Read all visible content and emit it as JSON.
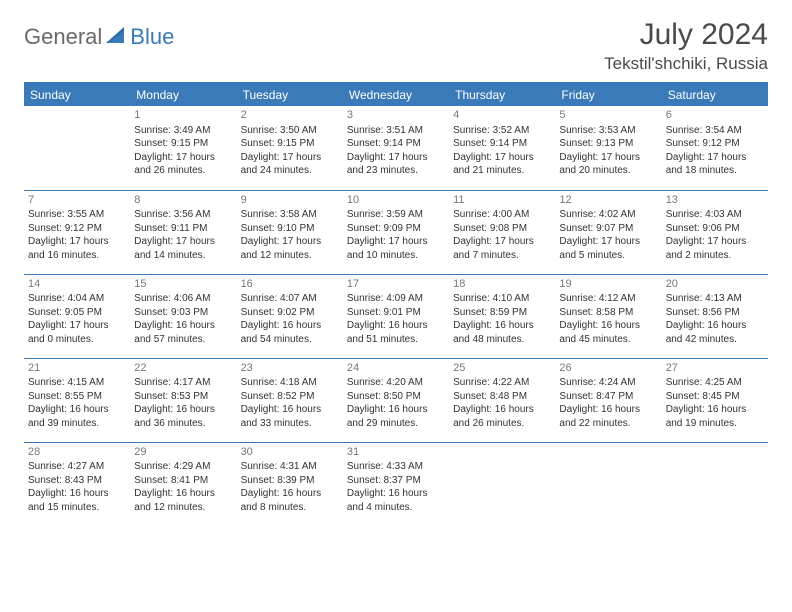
{
  "logo": {
    "general": "General",
    "blue": "Blue"
  },
  "title": {
    "month": "July 2024",
    "location": "Tekstil'shchiki, Russia"
  },
  "colors": {
    "accent": "#3a7ab8",
    "header_text": "#ffffff",
    "body_text": "#333333",
    "muted": "#777777"
  },
  "day_headers": [
    "Sunday",
    "Monday",
    "Tuesday",
    "Wednesday",
    "Thursday",
    "Friday",
    "Saturday"
  ],
  "weeks": [
    [
      {
        "day": "",
        "sunrise": "",
        "sunset": "",
        "dayl1": "",
        "dayl2": ""
      },
      {
        "day": "1",
        "sunrise": "Sunrise: 3:49 AM",
        "sunset": "Sunset: 9:15 PM",
        "dayl1": "Daylight: 17 hours",
        "dayl2": "and 26 minutes."
      },
      {
        "day": "2",
        "sunrise": "Sunrise: 3:50 AM",
        "sunset": "Sunset: 9:15 PM",
        "dayl1": "Daylight: 17 hours",
        "dayl2": "and 24 minutes."
      },
      {
        "day": "3",
        "sunrise": "Sunrise: 3:51 AM",
        "sunset": "Sunset: 9:14 PM",
        "dayl1": "Daylight: 17 hours",
        "dayl2": "and 23 minutes."
      },
      {
        "day": "4",
        "sunrise": "Sunrise: 3:52 AM",
        "sunset": "Sunset: 9:14 PM",
        "dayl1": "Daylight: 17 hours",
        "dayl2": "and 21 minutes."
      },
      {
        "day": "5",
        "sunrise": "Sunrise: 3:53 AM",
        "sunset": "Sunset: 9:13 PM",
        "dayl1": "Daylight: 17 hours",
        "dayl2": "and 20 minutes."
      },
      {
        "day": "6",
        "sunrise": "Sunrise: 3:54 AM",
        "sunset": "Sunset: 9:12 PM",
        "dayl1": "Daylight: 17 hours",
        "dayl2": "and 18 minutes."
      }
    ],
    [
      {
        "day": "7",
        "sunrise": "Sunrise: 3:55 AM",
        "sunset": "Sunset: 9:12 PM",
        "dayl1": "Daylight: 17 hours",
        "dayl2": "and 16 minutes."
      },
      {
        "day": "8",
        "sunrise": "Sunrise: 3:56 AM",
        "sunset": "Sunset: 9:11 PM",
        "dayl1": "Daylight: 17 hours",
        "dayl2": "and 14 minutes."
      },
      {
        "day": "9",
        "sunrise": "Sunrise: 3:58 AM",
        "sunset": "Sunset: 9:10 PM",
        "dayl1": "Daylight: 17 hours",
        "dayl2": "and 12 minutes."
      },
      {
        "day": "10",
        "sunrise": "Sunrise: 3:59 AM",
        "sunset": "Sunset: 9:09 PM",
        "dayl1": "Daylight: 17 hours",
        "dayl2": "and 10 minutes."
      },
      {
        "day": "11",
        "sunrise": "Sunrise: 4:00 AM",
        "sunset": "Sunset: 9:08 PM",
        "dayl1": "Daylight: 17 hours",
        "dayl2": "and 7 minutes."
      },
      {
        "day": "12",
        "sunrise": "Sunrise: 4:02 AM",
        "sunset": "Sunset: 9:07 PM",
        "dayl1": "Daylight: 17 hours",
        "dayl2": "and 5 minutes."
      },
      {
        "day": "13",
        "sunrise": "Sunrise: 4:03 AM",
        "sunset": "Sunset: 9:06 PM",
        "dayl1": "Daylight: 17 hours",
        "dayl2": "and 2 minutes."
      }
    ],
    [
      {
        "day": "14",
        "sunrise": "Sunrise: 4:04 AM",
        "sunset": "Sunset: 9:05 PM",
        "dayl1": "Daylight: 17 hours",
        "dayl2": "and 0 minutes."
      },
      {
        "day": "15",
        "sunrise": "Sunrise: 4:06 AM",
        "sunset": "Sunset: 9:03 PM",
        "dayl1": "Daylight: 16 hours",
        "dayl2": "and 57 minutes."
      },
      {
        "day": "16",
        "sunrise": "Sunrise: 4:07 AM",
        "sunset": "Sunset: 9:02 PM",
        "dayl1": "Daylight: 16 hours",
        "dayl2": "and 54 minutes."
      },
      {
        "day": "17",
        "sunrise": "Sunrise: 4:09 AM",
        "sunset": "Sunset: 9:01 PM",
        "dayl1": "Daylight: 16 hours",
        "dayl2": "and 51 minutes."
      },
      {
        "day": "18",
        "sunrise": "Sunrise: 4:10 AM",
        "sunset": "Sunset: 8:59 PM",
        "dayl1": "Daylight: 16 hours",
        "dayl2": "and 48 minutes."
      },
      {
        "day": "19",
        "sunrise": "Sunrise: 4:12 AM",
        "sunset": "Sunset: 8:58 PM",
        "dayl1": "Daylight: 16 hours",
        "dayl2": "and 45 minutes."
      },
      {
        "day": "20",
        "sunrise": "Sunrise: 4:13 AM",
        "sunset": "Sunset: 8:56 PM",
        "dayl1": "Daylight: 16 hours",
        "dayl2": "and 42 minutes."
      }
    ],
    [
      {
        "day": "21",
        "sunrise": "Sunrise: 4:15 AM",
        "sunset": "Sunset: 8:55 PM",
        "dayl1": "Daylight: 16 hours",
        "dayl2": "and 39 minutes."
      },
      {
        "day": "22",
        "sunrise": "Sunrise: 4:17 AM",
        "sunset": "Sunset: 8:53 PM",
        "dayl1": "Daylight: 16 hours",
        "dayl2": "and 36 minutes."
      },
      {
        "day": "23",
        "sunrise": "Sunrise: 4:18 AM",
        "sunset": "Sunset: 8:52 PM",
        "dayl1": "Daylight: 16 hours",
        "dayl2": "and 33 minutes."
      },
      {
        "day": "24",
        "sunrise": "Sunrise: 4:20 AM",
        "sunset": "Sunset: 8:50 PM",
        "dayl1": "Daylight: 16 hours",
        "dayl2": "and 29 minutes."
      },
      {
        "day": "25",
        "sunrise": "Sunrise: 4:22 AM",
        "sunset": "Sunset: 8:48 PM",
        "dayl1": "Daylight: 16 hours",
        "dayl2": "and 26 minutes."
      },
      {
        "day": "26",
        "sunrise": "Sunrise: 4:24 AM",
        "sunset": "Sunset: 8:47 PM",
        "dayl1": "Daylight: 16 hours",
        "dayl2": "and 22 minutes."
      },
      {
        "day": "27",
        "sunrise": "Sunrise: 4:25 AM",
        "sunset": "Sunset: 8:45 PM",
        "dayl1": "Daylight: 16 hours",
        "dayl2": "and 19 minutes."
      }
    ],
    [
      {
        "day": "28",
        "sunrise": "Sunrise: 4:27 AM",
        "sunset": "Sunset: 8:43 PM",
        "dayl1": "Daylight: 16 hours",
        "dayl2": "and 15 minutes."
      },
      {
        "day": "29",
        "sunrise": "Sunrise: 4:29 AM",
        "sunset": "Sunset: 8:41 PM",
        "dayl1": "Daylight: 16 hours",
        "dayl2": "and 12 minutes."
      },
      {
        "day": "30",
        "sunrise": "Sunrise: 4:31 AM",
        "sunset": "Sunset: 8:39 PM",
        "dayl1": "Daylight: 16 hours",
        "dayl2": "and 8 minutes."
      },
      {
        "day": "31",
        "sunrise": "Sunrise: 4:33 AM",
        "sunset": "Sunset: 8:37 PM",
        "dayl1": "Daylight: 16 hours",
        "dayl2": "and 4 minutes."
      },
      {
        "day": "",
        "sunrise": "",
        "sunset": "",
        "dayl1": "",
        "dayl2": ""
      },
      {
        "day": "",
        "sunrise": "",
        "sunset": "",
        "dayl1": "",
        "dayl2": ""
      },
      {
        "day": "",
        "sunrise": "",
        "sunset": "",
        "dayl1": "",
        "dayl2": ""
      }
    ]
  ]
}
